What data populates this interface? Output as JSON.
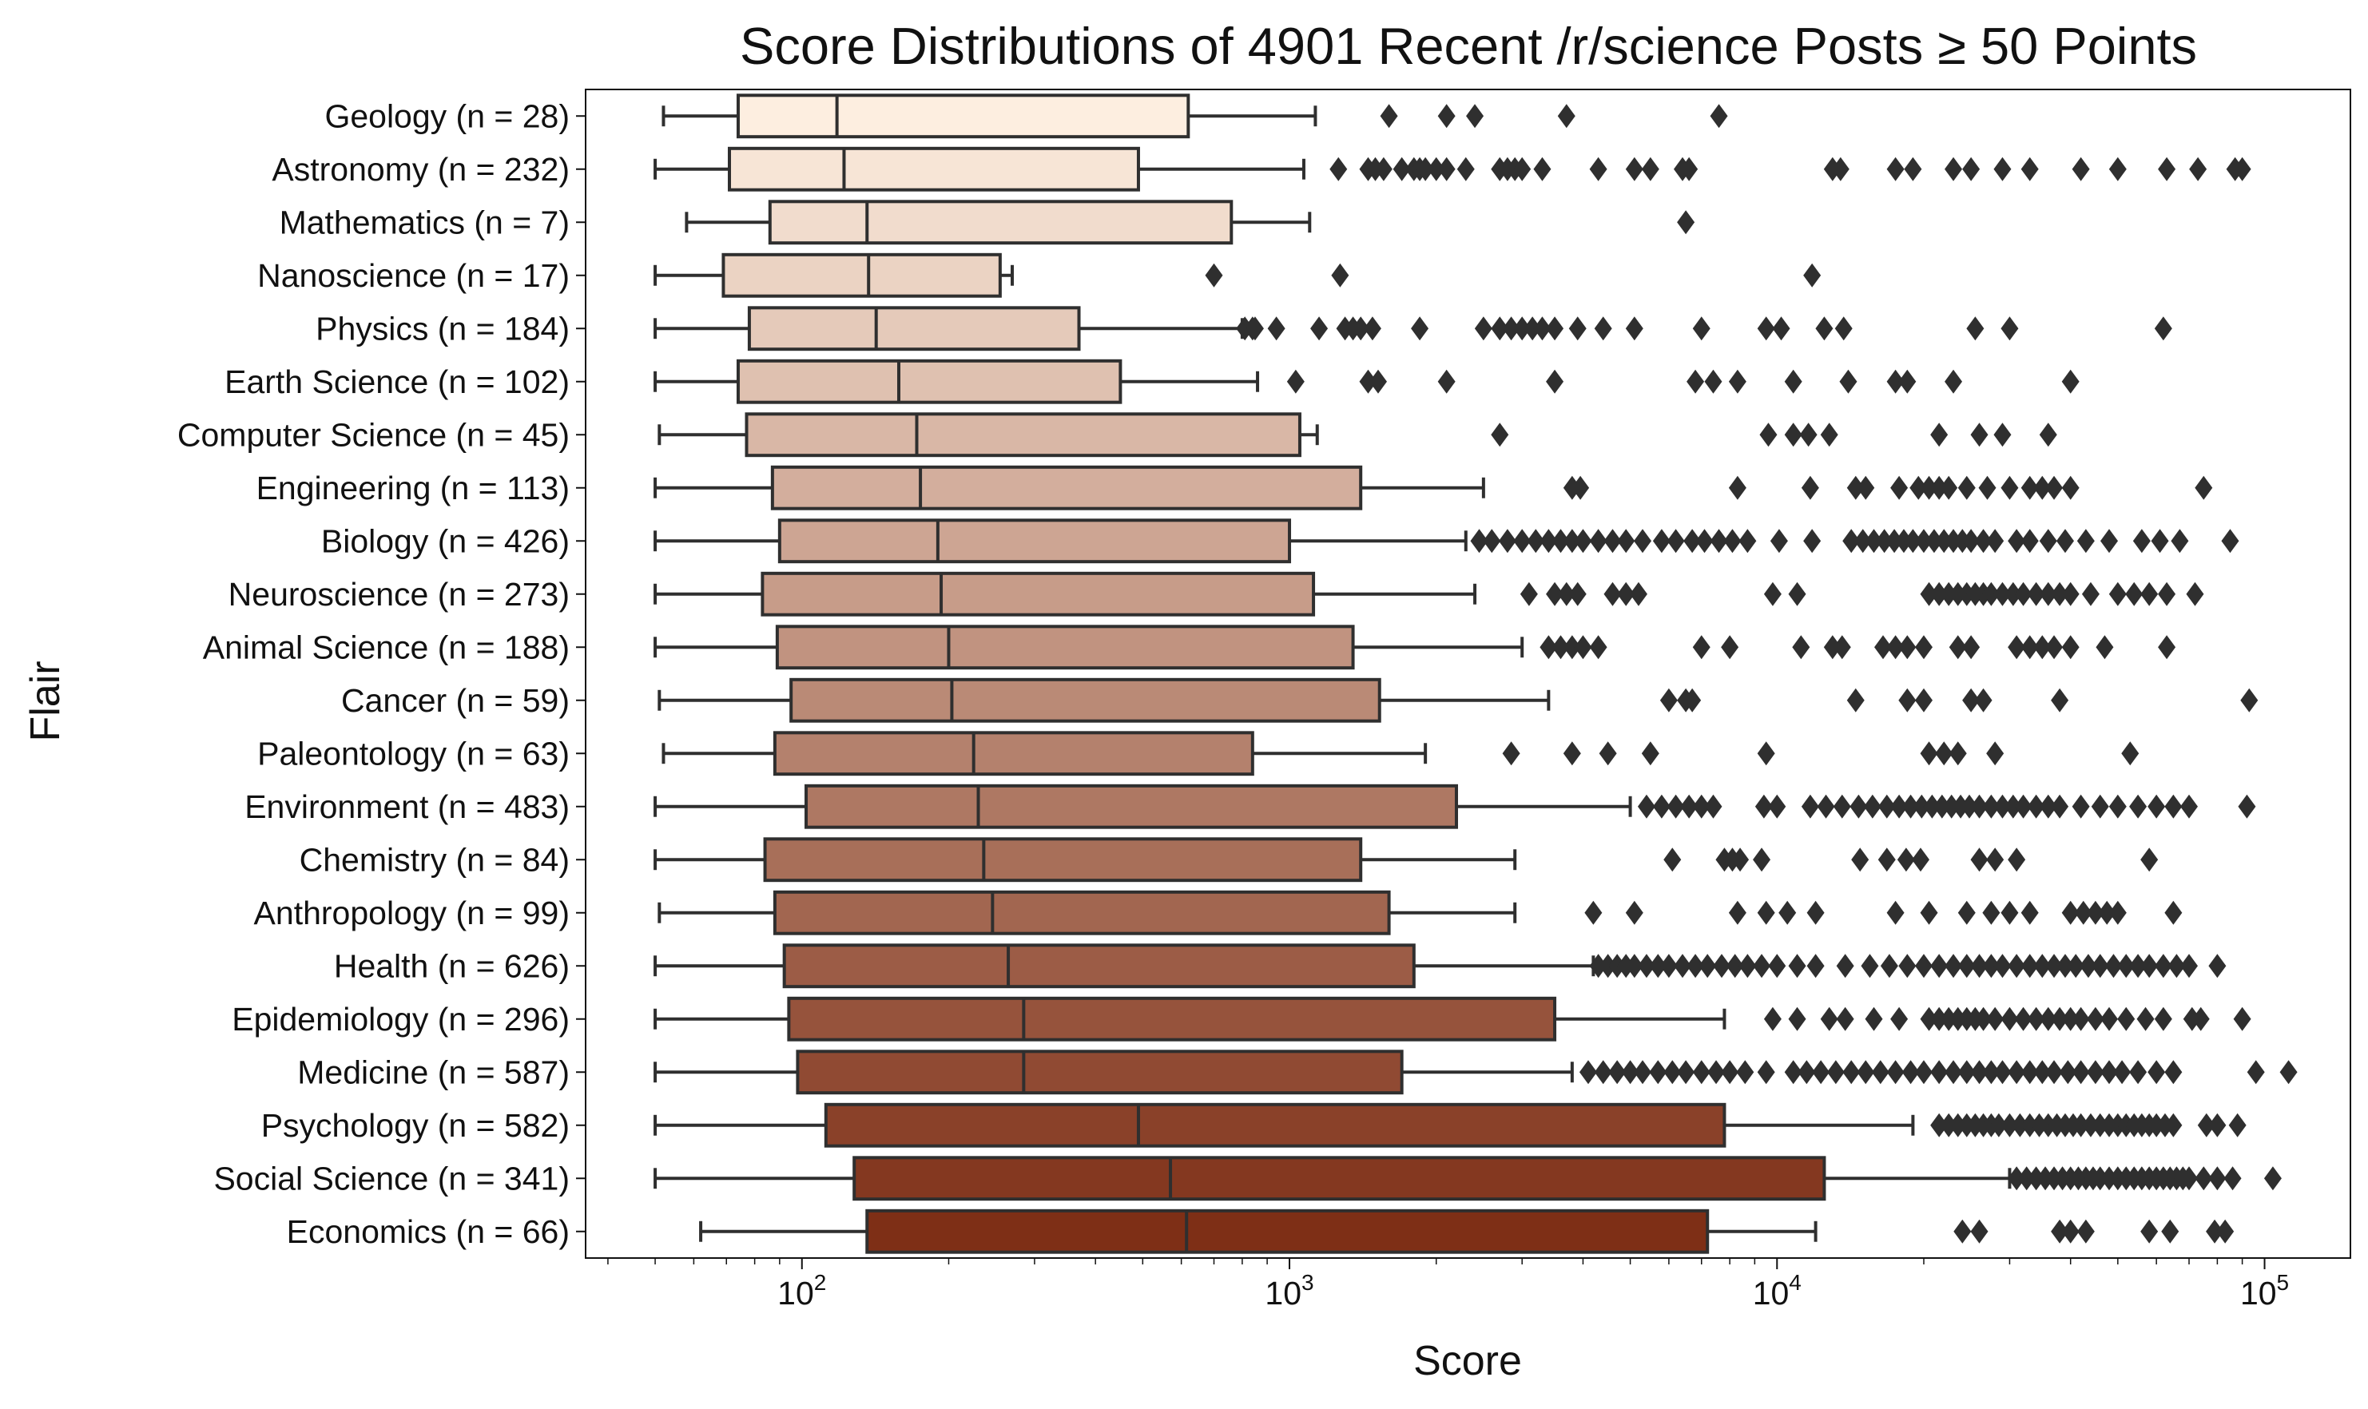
{
  "chart_data": {
    "type": "boxplot",
    "orientation": "horizontal",
    "title": "Score Distributions of 4901 Recent /r/science Posts ≥ 50 Points",
    "xlabel": "Score",
    "ylabel": "Flair",
    "xscale": "log",
    "xlim": [
      36,
      150000
    ],
    "xticks": [
      {
        "value": 100,
        "base": "10",
        "exp": "2"
      },
      {
        "value": 1000,
        "base": "10",
        "exp": "3"
      },
      {
        "value": 10000,
        "base": "10",
        "exp": "4"
      },
      {
        "value": 100000,
        "base": "10",
        "exp": "5"
      }
    ],
    "grid": false,
    "palette": "Oranges",
    "colors": {
      "box_start": "#fdeee0",
      "box_end": "#7e2f16",
      "edge": "#2f2f2f",
      "flier": "#2f2f2f"
    },
    "categories": [
      {
        "label": "Geology (n = 28)",
        "whislo": 52,
        "q1": 74,
        "median": 118,
        "q3": 620,
        "whishi": 1130,
        "fliers": [
          1600,
          2100,
          2400,
          3700,
          7600
        ]
      },
      {
        "label": "Astronomy (n = 232)",
        "whislo": 50,
        "q1": 71,
        "median": 122,
        "q3": 490,
        "whishi": 1070,
        "fliers": [
          1260,
          1450,
          1500,
          1560,
          1700,
          1800,
          1850,
          1900,
          2000,
          2100,
          2300,
          2700,
          2800,
          2900,
          3000,
          3300,
          4300,
          5100,
          5500,
          6400,
          6600,
          13000,
          13500,
          17500,
          19000,
          23000,
          25000,
          29000,
          33000,
          42000,
          50000,
          63000,
          73000,
          87000,
          90000
        ]
      },
      {
        "label": "Mathematics (n = 7)",
        "whislo": 58,
        "q1": 86,
        "median": 136,
        "q3": 760,
        "whishi": 1100,
        "fliers": [
          6500
        ]
      },
      {
        "label": "Nanoscience (n = 17)",
        "whislo": 50,
        "q1": 69,
        "median": 137,
        "q3": 255,
        "whishi": 270,
        "fliers": [
          700,
          1270,
          11800
        ]
      },
      {
        "label": "Physics (n = 184)",
        "whislo": 50,
        "q1": 78,
        "median": 142,
        "q3": 370,
        "whishi": 800,
        "fliers": [
          810,
          840,
          850,
          940,
          1150,
          1300,
          1350,
          1400,
          1480,
          1850,
          2500,
          2700,
          2850,
          3000,
          3150,
          3300,
          3500,
          3900,
          4400,
          5100,
          7000,
          9500,
          10200,
          12500,
          13700,
          25500,
          30000,
          62000
        ]
      },
      {
        "label": "Earth Science (n = 102)",
        "whislo": 50,
        "q1": 74,
        "median": 158,
        "q3": 450,
        "whishi": 860,
        "fliers": [
          1030,
          1450,
          1520,
          2100,
          3500,
          6800,
          7400,
          8300,
          10800,
          14000,
          17500,
          18500,
          23000,
          40000
        ]
      },
      {
        "label": "Computer Science (n = 45)",
        "whislo": 51,
        "q1": 77,
        "median": 172,
        "q3": 1050,
        "whishi": 1140,
        "fliers": [
          2700,
          9600,
          10800,
          11600,
          12800,
          21500,
          26000,
          29000,
          36000
        ]
      },
      {
        "label": "Engineering (n = 113)",
        "whislo": 50,
        "q1": 87,
        "median": 175,
        "q3": 1400,
        "whishi": 2500,
        "fliers": [
          3800,
          3950,
          8300,
          11700,
          14500,
          15200,
          17800,
          19500,
          20500,
          21500,
          22500,
          24500,
          27000,
          30000,
          33000,
          35000,
          37000,
          40000,
          75000
        ]
      },
      {
        "label": "Biology (n = 426)",
        "whislo": 50,
        "q1": 90,
        "median": 190,
        "q3": 1000,
        "whishi": 2300,
        "fliers": [
          2450,
          2600,
          2800,
          3000,
          3200,
          3400,
          3600,
          3800,
          4000,
          4300,
          4600,
          4900,
          5300,
          5800,
          6200,
          6700,
          7100,
          7600,
          8100,
          8700,
          10100,
          11800,
          14200,
          15000,
          15800,
          16600,
          17400,
          18200,
          19000,
          20000,
          21000,
          22000,
          23000,
          24000,
          25000,
          26500,
          28000,
          31000,
          33000,
          36000,
          39000,
          43000,
          48000,
          56000,
          61000,
          67000,
          85000
        ]
      },
      {
        "label": "Neuroscience (n = 273)",
        "whislo": 50,
        "q1": 83,
        "median": 193,
        "q3": 1120,
        "whishi": 2400,
        "fliers": [
          3100,
          3500,
          3700,
          3900,
          4600,
          4900,
          5200,
          9800,
          11000,
          20500,
          21500,
          22500,
          23500,
          24500,
          25500,
          26500,
          27500,
          29000,
          30500,
          32000,
          34000,
          36000,
          38000,
          40000,
          44000,
          50000,
          54000,
          58000,
          63000,
          72000
        ]
      },
      {
        "label": "Animal Science (n = 188)",
        "whislo": 50,
        "q1": 89,
        "median": 200,
        "q3": 1350,
        "whishi": 3000,
        "fliers": [
          3400,
          3600,
          3800,
          4000,
          4300,
          7000,
          8000,
          11200,
          13000,
          13600,
          16500,
          17500,
          18500,
          20000,
          23500,
          25000,
          31000,
          33000,
          35000,
          37000,
          40000,
          47000,
          63000
        ]
      },
      {
        "label": "Cancer (n = 59)",
        "whislo": 51,
        "q1": 95,
        "median": 203,
        "q3": 1530,
        "whishi": 3400,
        "fliers": [
          6000,
          6500,
          6700,
          14500,
          18500,
          20000,
          25000,
          26500,
          38000,
          93000
        ]
      },
      {
        "label": "Paleontology (n = 63)",
        "whislo": 52,
        "q1": 88,
        "median": 225,
        "q3": 840,
        "whishi": 1900,
        "fliers": [
          2850,
          3800,
          4500,
          5500,
          9500,
          20500,
          22000,
          23500,
          28000,
          53000
        ]
      },
      {
        "label": "Environment (n = 483)",
        "whislo": 50,
        "q1": 102,
        "median": 230,
        "q3": 2200,
        "whishi": 5000,
        "fliers": [
          5400,
          5800,
          6200,
          6600,
          7000,
          7400,
          9400,
          10000,
          11700,
          12600,
          13600,
          14700,
          15700,
          16800,
          17800,
          18800,
          19800,
          20800,
          21800,
          22800,
          23800,
          24800,
          26000,
          27500,
          29000,
          30500,
          32000,
          34000,
          36000,
          38000,
          42000,
          46000,
          50000,
          55000,
          60000,
          65000,
          70000,
          92000
        ]
      },
      {
        "label": "Chemistry (n = 84)",
        "whislo": 50,
        "q1": 84,
        "median": 236,
        "q3": 1400,
        "whishi": 2900,
        "fliers": [
          6100,
          7800,
          8100,
          8400,
          9300,
          14800,
          16800,
          18400,
          19700,
          26000,
          28000,
          31000,
          58000
        ]
      },
      {
        "label": "Anthropology (n = 99)",
        "whislo": 51,
        "q1": 88,
        "median": 246,
        "q3": 1600,
        "whishi": 2900,
        "fliers": [
          4200,
          5100,
          8300,
          9500,
          10500,
          12000,
          17500,
          20500,
          24500,
          27500,
          30000,
          33000,
          40000,
          42500,
          45000,
          47500,
          50000,
          65000
        ]
      },
      {
        "label": "Health (n = 626)",
        "whislo": 50,
        "q1": 92,
        "median": 265,
        "q3": 1800,
        "whishi": 4200,
        "fliers": [
          4300,
          4500,
          4700,
          4900,
          5100,
          5400,
          5700,
          6000,
          6400,
          6800,
          7200,
          7700,
          8200,
          8700,
          9300,
          10000,
          11000,
          12000,
          13800,
          15500,
          17000,
          18500,
          20000,
          21500,
          23000,
          24500,
          26000,
          27500,
          29000,
          31000,
          33000,
          35000,
          37000,
          39000,
          41000,
          43500,
          46000,
          49000,
          52000,
          55000,
          58000,
          62000,
          66000,
          70000,
          80000
        ]
      },
      {
        "label": "Epidemiology (n = 296)",
        "whislo": 50,
        "q1": 94,
        "median": 285,
        "q3": 3500,
        "whishi": 7800,
        "fliers": [
          9800,
          11000,
          12800,
          13800,
          15800,
          17800,
          20500,
          21500,
          22500,
          23500,
          24500,
          25500,
          26500,
          28000,
          30000,
          32000,
          34000,
          36000,
          38000,
          40000,
          42000,
          45000,
          48000,
          52000,
          57000,
          62000,
          71000,
          74000,
          90000
        ]
      },
      {
        "label": "Medicine (n = 587)",
        "whislo": 50,
        "q1": 98,
        "median": 285,
        "q3": 1700,
        "whishi": 3800,
        "fliers": [
          4100,
          4400,
          4700,
          5000,
          5300,
          5700,
          6100,
          6500,
          7000,
          7500,
          8000,
          8600,
          9500,
          10800,
          11500,
          12300,
          13200,
          14200,
          15200,
          16300,
          17500,
          18800,
          20000,
          21500,
          23000,
          24500,
          26000,
          27500,
          29000,
          31000,
          33000,
          35000,
          37000,
          39500,
          42000,
          45000,
          48000,
          51000,
          55000,
          60000,
          65000,
          96000,
          112000
        ]
      },
      {
        "label": "Psychology (n = 582)",
        "whislo": 50,
        "q1": 112,
        "median": 490,
        "q3": 7800,
        "whishi": 19000,
        "fliers": [
          21500,
          22500,
          23500,
          24500,
          25500,
          26500,
          27500,
          28500,
          30000,
          31500,
          33000,
          34500,
          36000,
          37500,
          39000,
          40500,
          42000,
          44000,
          46000,
          48000,
          50000,
          52000,
          54000,
          56000,
          58000,
          60000,
          62500,
          65000,
          76000,
          80000,
          88000
        ]
      },
      {
        "label": "Social Science (n = 341)",
        "whislo": 50,
        "q1": 128,
        "median": 570,
        "q3": 12500,
        "whishi": 30000,
        "fliers": [
          31000,
          32500,
          34000,
          35500,
          37000,
          38500,
          40000,
          41500,
          43000,
          44500,
          46000,
          48000,
          50000,
          52000,
          54000,
          56000,
          58000,
          60000,
          62000,
          64000,
          66000,
          68000,
          70000,
          75000,
          80000,
          86000,
          104000
        ]
      },
      {
        "label": "Economics (n = 66)",
        "whislo": 62,
        "q1": 136,
        "median": 615,
        "q3": 7200,
        "whishi": 12000,
        "fliers": [
          24000,
          26000,
          38000,
          40000,
          43000,
          58000,
          64000,
          79000,
          83000
        ]
      }
    ]
  }
}
